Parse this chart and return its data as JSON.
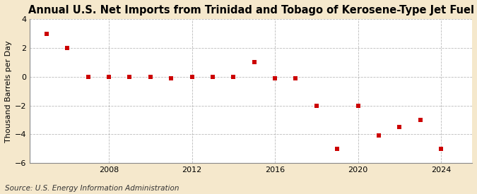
{
  "title": "Annual U.S. Net Imports from Trinidad and Tobago of Kerosene-Type Jet Fuel",
  "ylabel": "Thousand Barrels per Day",
  "source": "Source: U.S. Energy Information Administration",
  "background_color": "#f5e8cc",
  "plot_background_color": "#ffffff",
  "point_color": "#cc0000",
  "marker": "s",
  "marker_size": 5,
  "years": [
    2005,
    2006,
    2007,
    2008,
    2009,
    2010,
    2011,
    2012,
    2013,
    2014,
    2015,
    2016,
    2017,
    2018,
    2019,
    2020,
    2021,
    2022,
    2023,
    2024
  ],
  "values": [
    3.0,
    2.0,
    0.0,
    0.0,
    0.0,
    0.0,
    -0.1,
    0.0,
    0.0,
    0.0,
    1.0,
    -0.1,
    -0.1,
    -2.0,
    -5.0,
    -2.0,
    -4.1,
    -3.5,
    -3.0,
    -5.0
  ],
  "ylim": [
    -6,
    4
  ],
  "yticks": [
    -6,
    -4,
    -2,
    0,
    2,
    4
  ],
  "xticks": [
    2008,
    2012,
    2016,
    2020,
    2024
  ],
  "xlim": [
    2004.2,
    2025.5
  ],
  "grid_color": "#aaaaaa",
  "grid_style": "--",
  "grid_alpha": 0.8,
  "title_fontsize": 10.5,
  "ylabel_fontsize": 8,
  "tick_fontsize": 8,
  "source_fontsize": 7.5
}
